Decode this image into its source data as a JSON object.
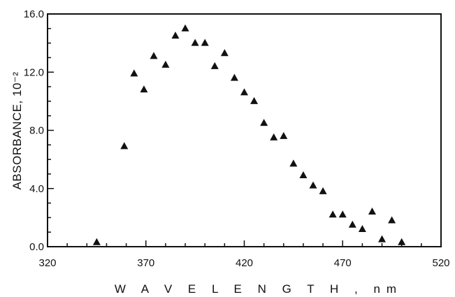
{
  "chart_data": {
    "type": "scatter",
    "title": "",
    "xlabel": "W A V E L E N G T H ,  nm",
    "ylabel": "ABSORBANCE, 10⁻²",
    "xlim": [
      320,
      520
    ],
    "ylim": [
      0,
      16
    ],
    "x_ticks": [
      "320",
      "370",
      "420",
      "470",
      "520"
    ],
    "y_ticks": [
      "0.0",
      "4.0",
      "8.0",
      "12.0",
      "16.0"
    ],
    "grid": false,
    "legend": "none",
    "marker": "triangle",
    "marker_color": "#111111",
    "series": [
      {
        "x": [
          345,
          359,
          364,
          369,
          374,
          380,
          385,
          390,
          395,
          400,
          405,
          410,
          415,
          420,
          425,
          430,
          435,
          440,
          445,
          450,
          455,
          460,
          465,
          470,
          475,
          480,
          485,
          490,
          495,
          500
        ],
        "y": [
          0.3,
          6.9,
          11.9,
          10.8,
          13.1,
          12.5,
          14.5,
          15.0,
          14.0,
          14.0,
          12.4,
          13.3,
          11.6,
          10.6,
          10.0,
          8.5,
          7.5,
          7.6,
          5.7,
          4.9,
          4.2,
          3.8,
          2.2,
          2.2,
          1.5,
          1.2,
          2.4,
          0.5,
          1.8,
          0.3
        ]
      }
    ]
  }
}
